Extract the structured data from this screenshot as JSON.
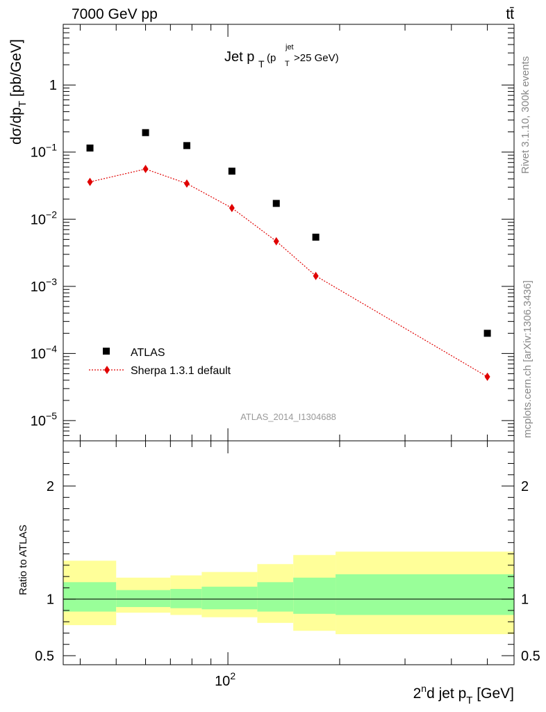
{
  "header": {
    "energy_label": "7000 GeV pp",
    "process_label": "tt̄",
    "panel_title": "Jet p",
    "panel_title_sub": "T",
    "panel_cut_prefix": "(p",
    "panel_cut_sup": "jet",
    "panel_cut_sub": "T",
    "panel_cut_suffix": ">25 GeV)",
    "analysis_id": "ATLAS_2014_I1304688",
    "side_rivet": "Rivet 3.1.10,  300k events",
    "side_mcplots": "mcplots.cern.ch [arXiv:1306.3436]"
  },
  "axes": {
    "y_main_label": "dσ/dp",
    "y_main_label_sub": "T",
    "y_main_label_units": " [pb/GeV]",
    "y_ratio_label": "Ratio to ATLAS",
    "x_label_prefix": "2",
    "x_label_sup": "n",
    "x_label_mid": "d jet p",
    "x_label_sub": "T",
    "x_label_suffix": " [GeV]",
    "x_tick_base": "10",
    "x_tick_exp": "2",
    "y_main_ticks": [
      {
        "value": 1,
        "base": "1",
        "exp": ""
      },
      {
        "value": 0.1,
        "base": "10",
        "exp": "−1"
      },
      {
        "value": 0.01,
        "base": "10",
        "exp": "−2"
      },
      {
        "value": 0.001,
        "base": "10",
        "exp": "−3"
      },
      {
        "value": 0.0001,
        "base": "10",
        "exp": "−4"
      },
      {
        "value": 1e-05,
        "base": "10",
        "exp": "−5"
      }
    ],
    "y_ratio_ticks": [
      {
        "value": 2,
        "label": "2"
      },
      {
        "value": 1,
        "label": "1"
      },
      {
        "value": 0.5,
        "label": "0.5"
      }
    ]
  },
  "legend": {
    "atlas_label": "ATLAS",
    "sherpa_label": "Sherpa 1.3.1 default",
    "position": "bottom-left"
  },
  "colors": {
    "atlas": "#000000",
    "sherpa": "#e00000",
    "band_inner": "#99ff99",
    "band_outer": "#ffff99",
    "side_text": "#888888"
  },
  "chart_data": {
    "type": "scatter",
    "x_scale": "log",
    "y_scale": "log",
    "xlim": [
      36,
      590
    ],
    "ylim": [
      5e-06,
      8
    ],
    "ratio_ylim": [
      0.42,
      2.4
    ],
    "series": [
      {
        "name": "ATLAS",
        "marker": "square",
        "points": [
          {
            "x": 42.5,
            "y": 0.115
          },
          {
            "x": 60.0,
            "y": 0.195
          },
          {
            "x": 77.5,
            "y": 0.125
          },
          {
            "x": 102.5,
            "y": 0.052
          },
          {
            "x": 135.0,
            "y": 0.0172
          },
          {
            "x": 172.5,
            "y": 0.0054
          },
          {
            "x": 500.0,
            "y": 0.0002
          }
        ]
      },
      {
        "name": "Sherpa 1.3.1 default",
        "marker": "diamond",
        "line": "dotted",
        "points": [
          {
            "x": 42.5,
            "y": 0.036
          },
          {
            "x": 60.0,
            "y": 0.056
          },
          {
            "x": 77.5,
            "y": 0.034
          },
          {
            "x": 102.5,
            "y": 0.0147
          },
          {
            "x": 135.0,
            "y": 0.0047
          },
          {
            "x": 172.5,
            "y": 0.00143
          },
          {
            "x": 500.0,
            "y": 4.5e-05
          }
        ]
      }
    ],
    "ratio_bands": [
      {
        "xlo": 36,
        "xhi": 50,
        "inner": [
          0.89,
          1.15
        ],
        "outer": [
          0.77,
          1.34
        ]
      },
      {
        "xlo": 50,
        "xhi": 70,
        "inner": [
          0.93,
          1.08
        ],
        "outer": [
          0.88,
          1.19
        ]
      },
      {
        "xlo": 70,
        "xhi": 85,
        "inner": [
          0.92,
          1.09
        ],
        "outer": [
          0.86,
          1.21
        ]
      },
      {
        "xlo": 85,
        "xhi": 120,
        "inner": [
          0.91,
          1.11
        ],
        "outer": [
          0.84,
          1.24
        ]
      },
      {
        "xlo": 120,
        "xhi": 150,
        "inner": [
          0.89,
          1.15
        ],
        "outer": [
          0.79,
          1.31
        ]
      },
      {
        "xlo": 150,
        "xhi": 195,
        "inner": [
          0.87,
          1.19
        ],
        "outer": [
          0.72,
          1.39
        ]
      },
      {
        "xlo": 195,
        "xhi": 590,
        "inner": [
          0.86,
          1.22
        ],
        "outer": [
          0.69,
          1.42
        ]
      }
    ]
  }
}
